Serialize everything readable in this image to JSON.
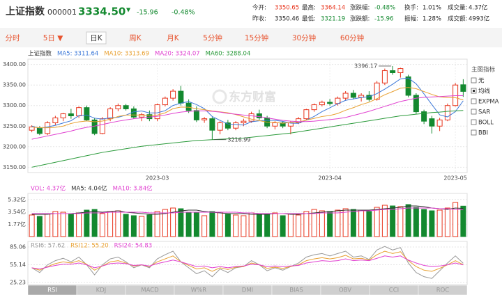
{
  "header": {
    "title": "上证指数",
    "code": "000001",
    "price": "3334.50",
    "arrow": "▼",
    "change": "-15.96",
    "change_pct": "-0.48%"
  },
  "quote": [
    {
      "label": "今开:",
      "value": "3350.65",
      "color": "#e8341c"
    },
    {
      "label": "最高:",
      "value": "3364.14",
      "color": "#e8341c"
    },
    {
      "label": "涨跌幅:",
      "value": "-0.48%",
      "color": "#13892f"
    },
    {
      "label": "换手:",
      "value": "1.01%",
      "color": "#222"
    },
    {
      "label": "成交量:",
      "value": "4.37亿",
      "color": "#222"
    },
    {
      "label": "昨收:",
      "value": "3350.46",
      "color": "#222"
    },
    {
      "label": "最低:",
      "value": "3321.19",
      "color": "#13892f"
    },
    {
      "label": "涨跌额:",
      "value": "-15.96",
      "color": "#13892f"
    },
    {
      "label": "振幅:",
      "value": "1.28%",
      "color": "#222"
    },
    {
      "label": "成交额:",
      "value": "4993亿",
      "color": "#222"
    }
  ],
  "tabs": [
    {
      "label": "分时"
    },
    {
      "label": "5日 ▼"
    },
    {
      "label": "日K",
      "active": true
    },
    {
      "label": "周K"
    },
    {
      "label": "月K"
    },
    {
      "label": "5分钟"
    },
    {
      "label": "15分钟"
    },
    {
      "label": "30分钟"
    },
    {
      "label": "60分钟"
    }
  ],
  "side_panel": {
    "title": "主图指标",
    "items": [
      {
        "label": "无"
      },
      {
        "label": "均线",
        "checked": true
      },
      {
        "label": "EXPMA"
      },
      {
        "label": "SAR"
      },
      {
        "label": "BOLL"
      },
      {
        "label": "BBI"
      }
    ]
  },
  "watermark": "东方财富",
  "indicator_tabs": [
    {
      "label": "RSI",
      "active": true
    },
    {
      "label": "KDJ"
    },
    {
      "label": "MACD"
    },
    {
      "label": "W%R"
    },
    {
      "label": "DMI"
    },
    {
      "label": "BIAS"
    },
    {
      "label": "OBV"
    },
    {
      "label": "CCI"
    },
    {
      "label": "ROC"
    }
  ],
  "chart_data": [
    {
      "type": "candlestick",
      "legend_title": "上证指数",
      "up_color": "#e8341c",
      "down_color": "#13892f",
      "grid": true,
      "categories": [
        null,
        null,
        null,
        null,
        null,
        null,
        null,
        null,
        null,
        null,
        null,
        null,
        null,
        null,
        null,
        null,
        "2023-03",
        null,
        null,
        null,
        null,
        null,
        null,
        null,
        null,
        null,
        null,
        null,
        null,
        null,
        null,
        null,
        null,
        null,
        null,
        null,
        null,
        null,
        "2023-04",
        null,
        null,
        null,
        null,
        null,
        null,
        null,
        null,
        null,
        null,
        null,
        null,
        null,
        null,
        null,
        "2023-05",
        null
      ],
      "open": [
        3240,
        3246,
        3232,
        3258,
        3270,
        3280,
        3275,
        3295,
        3265,
        3232,
        3268,
        3292,
        3300,
        3292,
        3272,
        3278,
        3268,
        3302,
        3318,
        3335,
        3306,
        3288,
        3265,
        3268,
        3240,
        3258,
        3245,
        3258,
        3262,
        3280,
        3270,
        3250,
        3258,
        3250,
        3258,
        3268,
        3290,
        3302,
        3308,
        3305,
        3318,
        3330,
        3320,
        3325,
        3315,
        3355,
        3385,
        3380,
        3370,
        3325,
        3285,
        3268,
        3250,
        3265,
        3300,
        3350.65
      ],
      "high": [
        3252,
        3250,
        3262,
        3275,
        3282,
        3292,
        3298,
        3300,
        3270,
        3272,
        3296,
        3305,
        3304,
        3298,
        3282,
        3288,
        3305,
        3322,
        3340,
        3348,
        3315,
        3298,
        3272,
        3272,
        3262,
        3265,
        3262,
        3268,
        3285,
        3290,
        3275,
        3262,
        3262,
        3262,
        3272,
        3292,
        3305,
        3312,
        3316,
        3322,
        3335,
        3338,
        3330,
        3335,
        3360,
        3390,
        3396.17,
        3392,
        3375,
        3330,
        3290,
        3275,
        3270,
        3305,
        3355,
        3364.14
      ],
      "low": [
        3235,
        3228,
        3228,
        3252,
        3262,
        3268,
        3270,
        3262,
        3228,
        3230,
        3262,
        3286,
        3288,
        3268,
        3262,
        3262,
        3262,
        3298,
        3312,
        3300,
        3282,
        3260,
        3258,
        3216.99,
        3230,
        3240,
        3240,
        3250,
        3258,
        3265,
        3245,
        3242,
        3245,
        3230,
        3255,
        3265,
        3285,
        3298,
        3300,
        3300,
        3312,
        3315,
        3310,
        3310,
        3312,
        3350,
        3375,
        3368,
        3320,
        3280,
        3255,
        3232,
        3238,
        3262,
        3298,
        3321.19
      ],
      "close": [
        3248,
        3232,
        3258,
        3270,
        3280,
        3275,
        3295,
        3265,
        3232,
        3268,
        3292,
        3300,
        3292,
        3272,
        3278,
        3268,
        3302,
        3318,
        3335,
        3306,
        3288,
        3265,
        3268,
        3240,
        3258,
        3245,
        3258,
        3262,
        3280,
        3270,
        3250,
        3258,
        3250,
        3258,
        3268,
        3290,
        3302,
        3308,
        3305,
        3318,
        3330,
        3320,
        3325,
        3315,
        3355,
        3385,
        3380,
        3390,
        3325,
        3285,
        3262,
        3250,
        3265,
        3300,
        3350,
        3334.5
      ],
      "series": [
        {
          "name": "MA5: 3311.64",
          "color": "#3c78d8",
          "values": [
            3250,
            3245,
            3248,
            3252,
            3257.6,
            3263,
            3275.6,
            3277,
            3269.4,
            3267,
            3270.4,
            3271.4,
            3276.8,
            3284.8,
            3286.8,
            3282,
            3282.4,
            3287.6,
            3300.2,
            3305.8,
            3309.8,
            3302.4,
            3292.4,
            3273.4,
            3263.8,
            3255.2,
            3253.8,
            3252.6,
            3260.6,
            3263,
            3264,
            3264,
            3261.6,
            3257.2,
            3256.8,
            3264.8,
            3273.6,
            3285.2,
            3294.6,
            3304.6,
            3312.6,
            3316.2,
            3319.6,
            3321.6,
            3329,
            3340,
            3352,
            3365,
            3367,
            3353,
            3328.4,
            3302.4,
            3277.4,
            3272.4,
            3285.4,
            3311.64
          ]
        },
        {
          "name": "MA10: 3313.69",
          "color": "#e8a030",
          "values": [
            3248,
            3246,
            3246,
            3247,
            3250,
            3256.5,
            3260.3,
            3262.5,
            3260.7,
            3262.3,
            3266.7,
            3273.5,
            3276.9,
            3277.1,
            3276.9,
            3276.2,
            3276.9,
            3282.2,
            3292.5,
            3296.3,
            3295.9,
            3292.4,
            3290,
            3286.8,
            3284.8,
            3282.5,
            3278.1,
            3272.5,
            3267,
            3263.4,
            3259.6,
            3258.9,
            3257.1,
            3258.9,
            3259.9,
            3264.4,
            3268.8,
            3273.4,
            3275.9,
            3280.7,
            3288.7,
            3294.9,
            3302.4,
            3308.1,
            3316.8,
            3326.3,
            3334.1,
            3342.3,
            3344.3,
            3341,
            3334.2,
            3327.2,
            3321.2,
            3319.7,
            3319.2,
            3313.69
          ]
        },
        {
          "name": "MA20: 3324.07",
          "color": "#e040d0",
          "values": [
            3218,
            3222,
            3226,
            3230,
            3234,
            3238,
            3243,
            3247,
            3250,
            3254,
            3258,
            3262,
            3265,
            3268,
            3270,
            3272,
            3274,
            3277,
            3281,
            3284,
            3286,
            3287,
            3287,
            3286,
            3284,
            3281,
            3279,
            3277,
            3275,
            3273,
            3270,
            3267,
            3264,
            3262,
            3261,
            3261,
            3262,
            3264,
            3266,
            3268,
            3271,
            3276,
            3281,
            3286,
            3292,
            3298,
            3304,
            3310,
            3314,
            3318,
            3320,
            3321,
            3322,
            3323,
            3324,
            3324.07
          ]
        },
        {
          "name": "MA60: 3288.04",
          "color": "#2a9a3a",
          "values": [
            3150,
            3154,
            3158,
            3162,
            3166,
            3170,
            3174,
            3178,
            3182,
            3186,
            3189,
            3192,
            3195,
            3198,
            3201,
            3203,
            3205,
            3207,
            3209,
            3211,
            3213,
            3215,
            3216,
            3217,
            3218,
            3219,
            3220,
            3221,
            3223,
            3225,
            3227,
            3229,
            3231,
            3233,
            3236,
            3239,
            3242,
            3245,
            3248,
            3251,
            3254,
            3257,
            3260,
            3263,
            3266,
            3269,
            3272,
            3275,
            3277,
            3279,
            3281,
            3283,
            3284,
            3286,
            3287,
            3288.04
          ]
        }
      ],
      "annotations": [
        {
          "value": 3396.17,
          "label": "3396.17"
        },
        {
          "value": 3216.99,
          "label": "3216.99"
        }
      ],
      "ylim": [
        3137,
        3413
      ],
      "yticks": [
        {
          "value": 3400,
          "label": "3400.00"
        },
        {
          "value": 3350,
          "label": "3350.00"
        },
        {
          "value": 3300,
          "label": "3300.00"
        },
        {
          "value": 3250,
          "label": "3250.00"
        },
        {
          "value": 3200,
          "label": "3200.00"
        },
        {
          "value": 3150,
          "label": "3150.00"
        }
      ]
    },
    {
      "type": "bar",
      "legend_title": "VOL: 4.37亿",
      "legend_color": "#e040d0",
      "grid": true,
      "values": [
        3.1,
        2.9,
        3.3,
        3.6,
        3.5,
        3.2,
        3.4,
        3.8,
        3.9,
        3.3,
        3.6,
        3.7,
        3.2,
        3.0,
        2.9,
        3.1,
        3.6,
        3.9,
        4.1,
        4.0,
        3.5,
        3.4,
        3.0,
        3.6,
        3.5,
        3.2,
        3.1,
        3.0,
        3.4,
        3.3,
        3.2,
        3.4,
        3.0,
        3.3,
        3.1,
        3.6,
        3.9,
        3.7,
        3.6,
        3.8,
        4.0,
        3.9,
        3.8,
        3.6,
        4.2,
        4.5,
        4.4,
        4.3,
        4.6,
        4.2,
        3.9,
        3.7,
        3.8,
        4.1,
        4.9,
        4.37
      ],
      "series": [
        {
          "name": "MA5: 4.04亿",
          "color": "#333333",
          "values": [
            3.2,
            3.2,
            3.2,
            3.3,
            3.3,
            3.3,
            3.4,
            3.5,
            3.6,
            3.5,
            3.6,
            3.7,
            3.5,
            3.4,
            3.3,
            3.2,
            3.2,
            3.3,
            3.5,
            3.7,
            3.8,
            3.8,
            3.6,
            3.5,
            3.4,
            3.3,
            3.3,
            3.3,
            3.2,
            3.2,
            3.2,
            3.3,
            3.3,
            3.2,
            3.2,
            3.3,
            3.4,
            3.5,
            3.6,
            3.7,
            3.8,
            3.8,
            3.8,
            3.8,
            3.9,
            4.0,
            4.1,
            4.2,
            4.4,
            4.4,
            4.3,
            4.1,
            4.0,
            3.9,
            4.1,
            4.04
          ]
        },
        {
          "name": "MA10: 3.84亿",
          "color": "#e040d0",
          "values": [
            3.3,
            3.3,
            3.3,
            3.3,
            3.3,
            3.3,
            3.3,
            3.4,
            3.4,
            3.4,
            3.5,
            3.5,
            3.5,
            3.5,
            3.5,
            3.4,
            3.4,
            3.4,
            3.4,
            3.5,
            3.5,
            3.5,
            3.5,
            3.5,
            3.5,
            3.5,
            3.5,
            3.4,
            3.4,
            3.3,
            3.3,
            3.3,
            3.3,
            3.3,
            3.3,
            3.3,
            3.3,
            3.4,
            3.4,
            3.4,
            3.5,
            3.6,
            3.7,
            3.7,
            3.8,
            3.9,
            3.9,
            4.0,
            4.1,
            4.1,
            4.1,
            4.1,
            4.0,
            4.0,
            3.9,
            3.84
          ]
        }
      ],
      "ylim": [
        0,
        6.2
      ],
      "yticks": [
        {
          "value": 5.32,
          "label": "5.32亿"
        },
        {
          "value": 3.54,
          "label": "3.54亿"
        },
        {
          "value": 1.77,
          "label": "1.77亿"
        }
      ]
    },
    {
      "type": "line",
      "grid": true,
      "series": [
        {
          "name": "RSI6: 57.62",
          "color": "#999999",
          "values": [
            50,
            42,
            55,
            62,
            66,
            60,
            68,
            55,
            38,
            55,
            65,
            68,
            60,
            50,
            55,
            50,
            65,
            72,
            78,
            60,
            50,
            40,
            45,
            35,
            48,
            42,
            50,
            52,
            62,
            55,
            45,
            50,
            46,
            52,
            58,
            68,
            72,
            74,
            70,
            74,
            78,
            68,
            70,
            64,
            80,
            86,
            80,
            84,
            58,
            42,
            35,
            32,
            45,
            58,
            70,
            57.62
          ]
        },
        {
          "name": "RSI12: 55.20",
          "color": "#e8a030",
          "values": [
            50,
            46,
            52,
            57,
            60,
            58,
            62,
            56,
            46,
            53,
            60,
            62,
            58,
            53,
            55,
            52,
            60,
            65,
            70,
            60,
            54,
            48,
            50,
            44,
            50,
            47,
            51,
            52,
            58,
            55,
            49,
            51,
            49,
            52,
            55,
            62,
            65,
            67,
            65,
            67,
            71,
            65,
            66,
            63,
            72,
            78,
            74,
            77,
            62,
            52,
            46,
            44,
            49,
            55,
            62,
            55.2
          ]
        },
        {
          "name": "RSI24: 54.83",
          "color": "#e040d0",
          "values": [
            50,
            48,
            51,
            54,
            56,
            56,
            58,
            55,
            50,
            53,
            57,
            58,
            57,
            54,
            55,
            53,
            57,
            60,
            63,
            60,
            56,
            52,
            53,
            50,
            52,
            50,
            52,
            53,
            56,
            55,
            52,
            53,
            52,
            53,
            54,
            58,
            60,
            62,
            61,
            62,
            65,
            62,
            63,
            62,
            66,
            70,
            68,
            70,
            63,
            58,
            54,
            52,
            53,
            55,
            58,
            54.83
          ]
        }
      ],
      "ylim": [
        21.7,
        94.4
      ],
      "yticks": [
        85.06,
        55.14,
        25.23
      ]
    }
  ]
}
